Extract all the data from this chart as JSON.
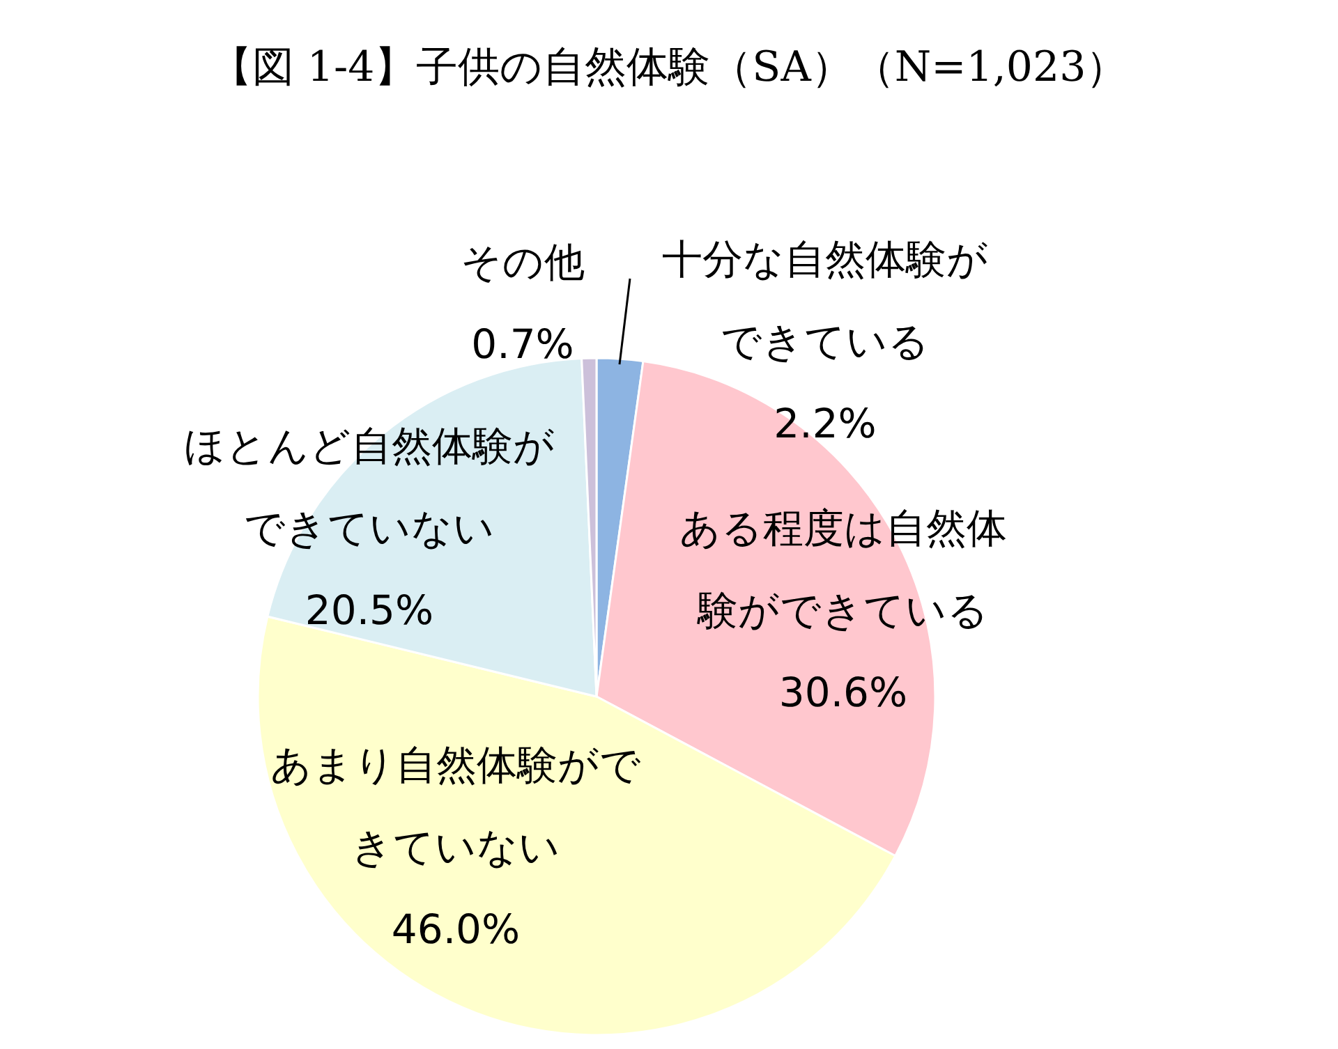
{
  "chart_data": {
    "type": "pie",
    "title": "【図 1-4】子供の自然体験（SA）（N=1,023）",
    "categories": [
      "十分な自然体験ができている",
      "ある程度は自然体験ができている",
      "あまり自然体験ができていない",
      "ほとんど自然体験ができていない",
      "その他"
    ],
    "values": [
      2.2,
      30.6,
      46.0,
      20.5,
      0.7
    ],
    "value_labels": [
      "2.2%",
      "30.6%",
      "46.0%",
      "20.5%",
      "0.7%"
    ],
    "colors": [
      "#8db4e2",
      "#ffc7ce",
      "#ffffcc",
      "#daeef3",
      "#ccc0da"
    ]
  }
}
